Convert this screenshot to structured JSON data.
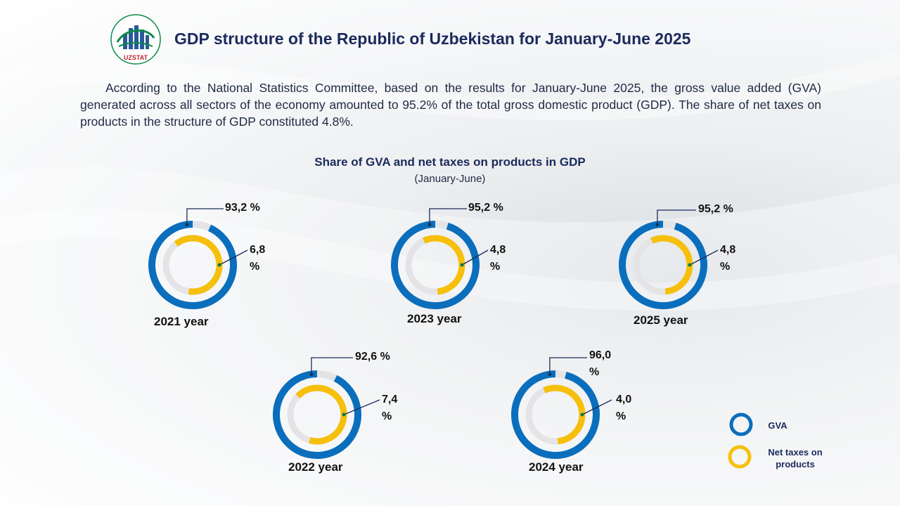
{
  "header": {
    "logo_text": "UZSTAT",
    "title": "GDP structure of the Republic of Uzbekistan for January-June 2025"
  },
  "intro": "According to the National Statistics Committee, based on the results for January-June 2025, the gross value added (GVA) generated across all sectors of the economy amounted to 95.2% of the total gross domestic product (GDP). The share of net taxes on products in the structure of GDP constituted 4.8%.",
  "colors": {
    "gva": "#0a6ebd",
    "taxes": "#f6bf0b",
    "track": "#e4e4e6",
    "title": "#1b2a5c"
  },
  "chart_data": {
    "type": "donut",
    "title": "Share of GVA and net taxes on products in GDP",
    "subtitle": "(January-June)",
    "unit": "%",
    "series": [
      {
        "name": "GVA",
        "color": "#0a6ebd"
      },
      {
        "name": "Net taxes on products",
        "color": "#f6bf0b"
      }
    ],
    "charts": [
      {
        "year": "2021 year",
        "gva": 93.2,
        "taxes": 6.8,
        "gva_label": "93,2 %",
        "taxes_label": "6,8 %"
      },
      {
        "year": "2023 year",
        "gva": 95.2,
        "taxes": 4.8,
        "gva_label": "95,2 %",
        "taxes_label": "4,8 %"
      },
      {
        "year": "2025 year",
        "gva": 95.2,
        "taxes": 4.8,
        "gva_label": "95,2 %",
        "taxes_label": "4,8 %"
      },
      {
        "year": "2022 year",
        "gva": 92.6,
        "taxes": 7.4,
        "gva_label": "92,6 %",
        "taxes_label": "7,4 %"
      },
      {
        "year": "2024 year",
        "gva": 96.0,
        "taxes": 4.0,
        "gva_label": "96,0 %",
        "taxes_label": "4,0 %"
      }
    ],
    "legend": {
      "gva": "GVA",
      "taxes": "Net taxes on products"
    }
  }
}
